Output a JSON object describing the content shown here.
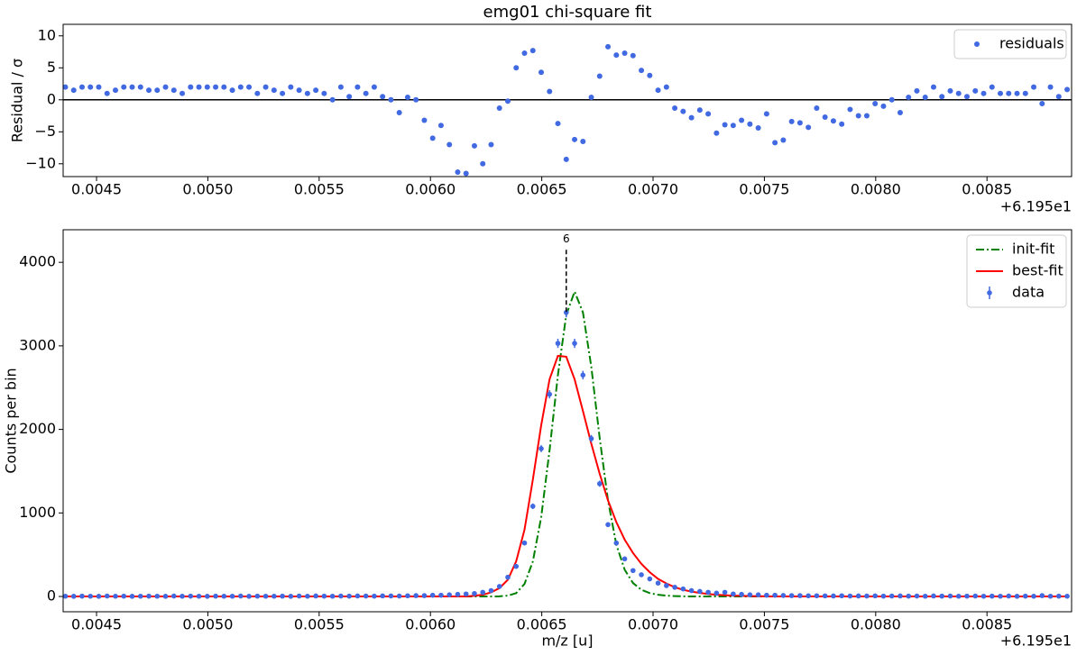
{
  "chart_data": [
    {
      "type": "scatter",
      "title": "emg01 chi-square fit",
      "y_label": "Residual / σ",
      "x_offset_label": "+6.195e1",
      "x": [
        0.00436,
        0.0043975,
        0.004435,
        0.0044725,
        0.00451,
        0.0045475,
        0.004585,
        0.0046225,
        0.00466,
        0.0046975,
        0.004735,
        0.0047725,
        0.00481,
        0.0048475,
        0.004885,
        0.0049225,
        0.00496,
        0.0049975,
        0.005035,
        0.0050725,
        0.00511,
        0.0051475,
        0.005185,
        0.0052225,
        0.00526,
        0.0052975,
        0.005335,
        0.0053725,
        0.00541,
        0.0054475,
        0.005485,
        0.0055225,
        0.00556,
        0.0055975,
        0.005635,
        0.0056725,
        0.00571,
        0.0057475,
        0.005785,
        0.0058225,
        0.00586,
        0.0058975,
        0.005935,
        0.0059725,
        0.00601,
        0.0060475,
        0.006085,
        0.0061225,
        0.00616,
        0.0061975,
        0.006235,
        0.0062725,
        0.00631,
        0.0063475,
        0.006385,
        0.0064225,
        0.00646,
        0.0064975,
        0.006535,
        0.0065725,
        0.00661,
        0.0066475,
        0.006685,
        0.0067225,
        0.00676,
        0.0067975,
        0.006835,
        0.0068725,
        0.00691,
        0.0069475,
        0.006985,
        0.0070225,
        0.00706,
        0.0070975,
        0.007135,
        0.0071725,
        0.00721,
        0.0072475,
        0.007285,
        0.0073225,
        0.00736,
        0.0073975,
        0.007435,
        0.0074725,
        0.00751,
        0.0075475,
        0.007585,
        0.0076225,
        0.00766,
        0.0076975,
        0.007735,
        0.0077725,
        0.00781,
        0.0078475,
        0.007885,
        0.0079225,
        0.00796,
        0.0079975,
        0.008035,
        0.0080725,
        0.00811,
        0.0081475,
        0.008185,
        0.0082225,
        0.00826,
        0.0082975,
        0.008335,
        0.0083725,
        0.00841,
        0.0084475,
        0.008485,
        0.0085225,
        0.00856,
        0.0085975,
        0.008635,
        0.0086725,
        0.00871,
        0.0087475,
        0.008785,
        0.0088225,
        0.00886
      ],
      "series": [
        {
          "name": "residuals",
          "color": "#4169e1",
          "values": [
            2,
            1.5,
            2,
            2,
            2,
            1,
            1.5,
            2,
            2,
            2,
            1.5,
            1.5,
            2,
            1.5,
            1,
            2,
            2,
            2,
            2,
            2,
            1.5,
            2,
            2,
            1,
            2,
            1.5,
            1,
            2,
            1.5,
            1,
            1.5,
            1,
            0,
            2,
            0.5,
            2,
            1,
            2,
            0.5,
            0,
            -2,
            0.4,
            0,
            -3.2,
            -6,
            -4,
            -7,
            -11.3,
            -11.5,
            -7.2,
            -10,
            -7,
            -1.3,
            -0.2,
            5,
            7.3,
            7.7,
            4.3,
            1.3,
            -3.7,
            -9.3,
            -6.2,
            -6.5,
            0.4,
            3.7,
            8.3,
            7,
            7.3,
            6.9,
            4.6,
            3.8,
            1.5,
            2,
            -1.3,
            -1.8,
            -2.8,
            -1.6,
            -2.2,
            -5.2,
            -3.9,
            -4,
            -3.2,
            -3.8,
            -4.4,
            -2.2,
            -6.7,
            -6.3,
            -3.4,
            -3.6,
            -4.3,
            -1.3,
            -2.7,
            -3.3,
            -3.8,
            -1.5,
            -2.5,
            -2.5,
            -0.6,
            -1,
            0,
            -2,
            0.4,
            1.4,
            0.4,
            2,
            0.5,
            1.4,
            1,
            0.5,
            1.4,
            1,
            2,
            1,
            1,
            1,
            1,
            2,
            -0.6,
            2,
            0.5,
            1.6
          ]
        }
      ],
      "hline": 0,
      "xlim": [
        0.00435,
        0.00888
      ],
      "ylim": [
        -12,
        11.8
      ],
      "xticks": [
        0.0045,
        {
          "value": 0.005,
          "label": "0.0050"
        },
        0.0055,
        {
          "value": 0.006,
          "label": "0.0060"
        },
        0.0065,
        {
          "value": 0.007,
          "label": "0.0070"
        },
        0.0075,
        {
          "value": 0.008,
          "label": "0.0080"
        },
        0.0085
      ],
      "yticks": [
        {
          "value": -10,
          "label": "−10"
        },
        {
          "value": -5,
          "label": "−5"
        },
        0,
        5,
        10
      ],
      "legend": "upper right"
    },
    {
      "type": "line",
      "x_label": "m/z [u]",
      "y_label": "Counts per bin",
      "x_offset_label": "+6.195e1",
      "x": [
        0.00436,
        0.0043975,
        0.004435,
        0.0044725,
        0.00451,
        0.0045475,
        0.004585,
        0.0046225,
        0.00466,
        0.0046975,
        0.004735,
        0.0047725,
        0.00481,
        0.0048475,
        0.004885,
        0.0049225,
        0.00496,
        0.0049975,
        0.005035,
        0.0050725,
        0.00511,
        0.0051475,
        0.005185,
        0.0052225,
        0.00526,
        0.0052975,
        0.005335,
        0.0053725,
        0.00541,
        0.0054475,
        0.005485,
        0.0055225,
        0.00556,
        0.0055975,
        0.005635,
        0.0056725,
        0.00571,
        0.0057475,
        0.005785,
        0.0058225,
        0.00586,
        0.0058975,
        0.005935,
        0.0059725,
        0.00601,
        0.0060475,
        0.006085,
        0.0061225,
        0.00616,
        0.0061975,
        0.006235,
        0.0062725,
        0.00631,
        0.0063475,
        0.006385,
        0.0064225,
        0.00646,
        0.0064975,
        0.006535,
        0.0065725,
        0.00661,
        0.0066475,
        0.006685,
        0.0067225,
        0.00676,
        0.0067975,
        0.006835,
        0.0068725,
        0.00691,
        0.0069475,
        0.006985,
        0.0070225,
        0.00706,
        0.0070975,
        0.007135,
        0.0071725,
        0.00721,
        0.0072475,
        0.007285,
        0.0073225,
        0.00736,
        0.0073975,
        0.007435,
        0.0074725,
        0.00751,
        0.0075475,
        0.007585,
        0.0076225,
        0.00766,
        0.0076975,
        0.007735,
        0.0077725,
        0.00781,
        0.0078475,
        0.007885,
        0.0079225,
        0.00796,
        0.0079975,
        0.008035,
        0.0080725,
        0.00811,
        0.0081475,
        0.008185,
        0.0082225,
        0.00826,
        0.0082975,
        0.008335,
        0.0083725,
        0.00841,
        0.0084475,
        0.008485,
        0.0085225,
        0.00856,
        0.0085975,
        0.008635,
        0.0086725,
        0.00871,
        0.0087475,
        0.008785,
        0.0088225,
        0.00886
      ],
      "series": [
        {
          "name": "init-fit",
          "color": "#008000",
          "style": "dashdot",
          "values": [
            0,
            0,
            0,
            0,
            0,
            0,
            0,
            0,
            0,
            0,
            0,
            0,
            0,
            0,
            0,
            0,
            0,
            0,
            0,
            0,
            0,
            0,
            0,
            0,
            0,
            0,
            0,
            0,
            0,
            0,
            0,
            0,
            0,
            0,
            0,
            0,
            0,
            0,
            0,
            0,
            0,
            0,
            0,
            0,
            0,
            0,
            0,
            0,
            0,
            0,
            0,
            0,
            2,
            10,
            40,
            150,
            420,
            950,
            1750,
            2650,
            3370,
            3650,
            3400,
            2750,
            1900,
            1150,
            620,
            320,
            160,
            80,
            40,
            20,
            10,
            5,
            2,
            0,
            0,
            0,
            0,
            0,
            0,
            0,
            0,
            0,
            0,
            0,
            0,
            0,
            0,
            0,
            0,
            0,
            0,
            0,
            0,
            0,
            0,
            0,
            0,
            0,
            0,
            0,
            0,
            0,
            0,
            0,
            0,
            0,
            0,
            0,
            0,
            0,
            0,
            0,
            0,
            0,
            0,
            0,
            0,
            0,
            0
          ]
        },
        {
          "name": "best-fit",
          "color": "#ff0000",
          "style": "solid",
          "values": [
            0,
            0,
            0,
            0,
            0,
            0,
            0,
            0,
            0,
            0,
            0,
            0,
            0,
            0,
            0,
            0,
            0,
            0,
            0,
            0,
            0,
            0,
            0,
            0,
            0,
            0,
            0,
            0,
            0,
            0,
            0,
            0,
            0,
            0,
            0,
            0,
            0,
            0,
            0,
            0,
            0,
            0,
            0,
            0,
            0,
            0,
            0,
            0,
            0,
            8,
            20,
            50,
            100,
            200,
            420,
            800,
            1400,
            2050,
            2600,
            2880,
            2870,
            2600,
            2220,
            1830,
            1470,
            1150,
            890,
            680,
            520,
            390,
            290,
            210,
            155,
            110,
            80,
            58,
            42,
            30,
            21,
            15,
            10,
            7,
            5,
            3,
            2,
            1,
            0,
            0,
            0,
            0,
            0,
            0,
            0,
            0,
            0,
            0,
            0,
            0,
            0,
            0,
            0,
            0,
            0,
            0,
            0,
            0,
            0,
            0,
            0,
            0,
            0,
            0,
            0,
            0,
            0,
            0,
            0,
            0,
            0,
            0,
            0
          ]
        },
        {
          "name": "data",
          "color": "#4169e1",
          "values": [
            3,
            2,
            4,
            3,
            2,
            5,
            3,
            4,
            2,
            3,
            4,
            3,
            2,
            5,
            3,
            4,
            3,
            2,
            4,
            3,
            3,
            5,
            2,
            4,
            3,
            3,
            4,
            2,
            5,
            3,
            6,
            4,
            3,
            5,
            4,
            6,
            5,
            4,
            7,
            6,
            5,
            8,
            10,
            10,
            15,
            15,
            20,
            25,
            30,
            35,
            50,
            70,
            120,
            230,
            360,
            640,
            1080,
            1770,
            2420,
            3030,
            3400,
            3030,
            2650,
            1890,
            1350,
            860,
            640,
            450,
            310,
            260,
            210,
            160,
            130,
            110,
            90,
            70,
            60,
            50,
            40,
            50,
            30,
            25,
            20,
            20,
            15,
            15,
            12,
            10,
            10,
            8,
            8,
            7,
            6,
            8,
            5,
            6,
            5,
            7,
            4,
            5,
            6,
            4,
            5,
            3,
            6,
            4,
            5,
            3,
            4,
            5,
            3,
            4,
            3,
            5,
            2,
            4,
            3,
            10,
            3,
            4,
            3
          ],
          "errors": [
            1.7,
            1.4,
            2,
            1.7,
            1.4,
            2.2,
            1.7,
            2,
            1.4,
            1.7,
            2,
            1.7,
            1.4,
            2.2,
            1.7,
            2,
            1.7,
            1.4,
            2,
            1.7,
            1.7,
            2.2,
            1.4,
            2,
            1.7,
            1.7,
            2,
            1.4,
            2.2,
            1.7,
            2.4,
            2,
            1.7,
            2.2,
            2,
            2.4,
            2.2,
            2,
            2.6,
            2.4,
            2.2,
            2.8,
            3.2,
            3.2,
            3.9,
            3.9,
            4.5,
            5,
            5.5,
            5.9,
            7.1,
            8.4,
            11,
            15.2,
            19,
            25.3,
            32.9,
            42.1,
            49.2,
            55,
            58.3,
            55,
            51.5,
            43.5,
            36.7,
            29.3,
            25.3,
            21.2,
            17.6,
            16.1,
            14.5,
            12.6,
            11.4,
            10.5,
            9.5,
            8.4,
            7.7,
            7.1,
            6.3,
            7.1,
            5.5,
            5,
            4.5,
            4.5,
            3.9,
            3.9,
            3.5,
            3.2,
            3.2,
            2.8,
            2.8,
            2.6,
            2.4,
            2.8,
            2.2,
            2.4,
            2.2,
            2.6,
            2,
            2.2,
            2.4,
            2,
            2.2,
            1.7,
            2.4,
            2,
            2.2,
            1.7,
            2,
            2.2,
            1.7,
            2,
            1.7,
            2.2,
            1.4,
            2,
            1.7,
            3.2,
            1.7,
            2,
            1.7
          ]
        }
      ],
      "annotations": [
        {
          "text": "6",
          "x": 0.00661,
          "y": 4150
        }
      ],
      "xlim": [
        0.00435,
        0.00888
      ],
      "ylim": [
        -183,
        4390
      ],
      "xticks": [
        0.0045,
        {
          "value": 0.005,
          "label": "0.0050"
        },
        0.0055,
        {
          "value": 0.006,
          "label": "0.0060"
        },
        0.0065,
        {
          "value": 0.007,
          "label": "0.0070"
        },
        0.0075,
        {
          "value": 0.008,
          "label": "0.0080"
        },
        0.0085
      ],
      "yticks": [
        0,
        1000,
        2000,
        3000,
        4000
      ],
      "legend": "upper right"
    }
  ]
}
